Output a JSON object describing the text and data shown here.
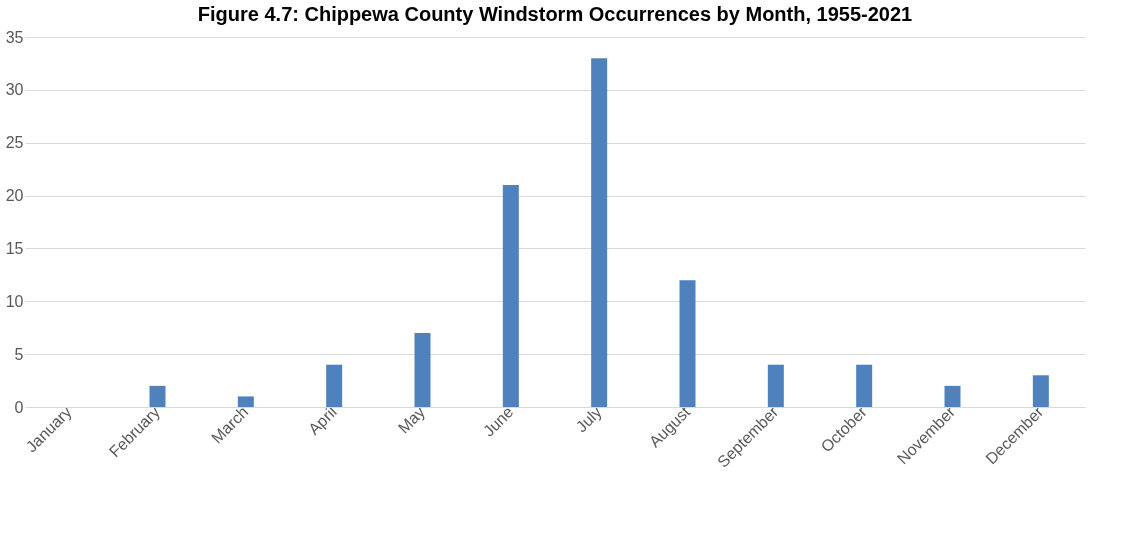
{
  "chart_data": {
    "type": "bar",
    "title": "Figure 4.7: Chippewa County Windstorm Occurrences by Month, 1955-2021",
    "categories": [
      "January",
      "February",
      "March",
      "April",
      "May",
      "June",
      "July",
      "August",
      "September",
      "October",
      "November",
      "December"
    ],
    "values": [
      0,
      2,
      1,
      4,
      7,
      21,
      33,
      12,
      4,
      4,
      2,
      3
    ],
    "color": "#4f81bd",
    "ylim": [
      0,
      35
    ],
    "yticks": [
      0,
      5,
      10,
      15,
      20,
      25,
      30,
      35
    ],
    "grid": "y"
  }
}
